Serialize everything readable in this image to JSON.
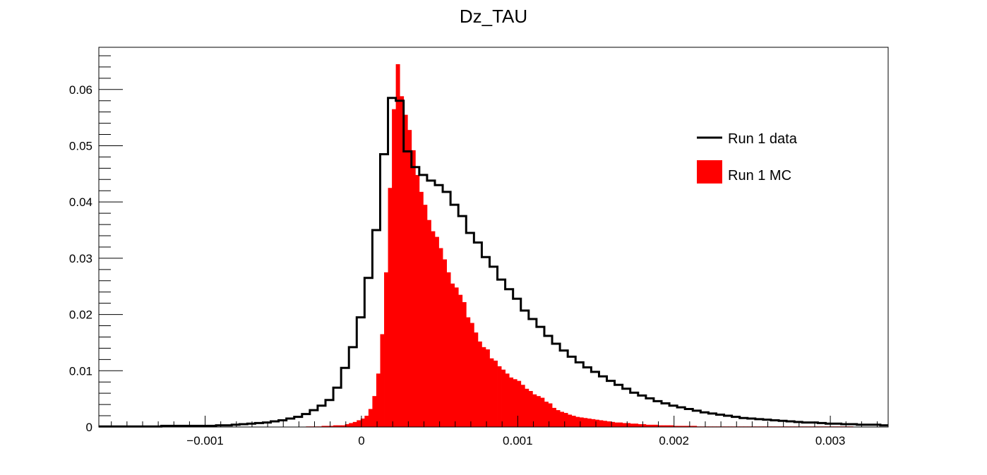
{
  "chart_data": {
    "type": "histogram",
    "title": "Dz_TAU",
    "xlabel": "",
    "ylabel": "",
    "xlim": [
      -0.00168,
      0.00337
    ],
    "ylim": [
      0,
      0.0675
    ],
    "x_ticks": [
      {
        "value": -0.001,
        "label": "−0.001"
      },
      {
        "value": 0,
        "label": "0"
      },
      {
        "value": 0.001,
        "label": "0.001"
      },
      {
        "value": 0.002,
        "label": "0.002"
      },
      {
        "value": 0.003,
        "label": "0.003"
      }
    ],
    "y_ticks": [
      {
        "value": 0,
        "label": "0"
      },
      {
        "value": 0.01,
        "label": "0.01"
      },
      {
        "value": 0.02,
        "label": "0.02"
      },
      {
        "value": 0.03,
        "label": "0.03"
      },
      {
        "value": 0.04,
        "label": "0.04"
      },
      {
        "value": 0.05,
        "label": "0.05"
      },
      {
        "value": 0.06,
        "label": "0.06"
      }
    ],
    "grid": false,
    "legend_position": "top-right",
    "series": [
      {
        "name": "Run 1 data",
        "style": "step",
        "color": "#000000",
        "bin_width": 5e-05,
        "x_start": -0.00168,
        "values": [
          0.0001,
          0.0001,
          0.0001,
          0.0001,
          0.0001,
          0.0001,
          0.0001,
          0.0001,
          0.0002,
          0.0002,
          0.0002,
          0.0002,
          0.0002,
          0.0002,
          0.0002,
          0.0003,
          0.0003,
          0.0004,
          0.0005,
          0.0006,
          0.0007,
          0.0008,
          0.001,
          0.0012,
          0.0015,
          0.0018,
          0.0023,
          0.003,
          0.0038,
          0.0048,
          0.007,
          0.0105,
          0.0142,
          0.0195,
          0.0265,
          0.035,
          0.0485,
          0.0585,
          0.058,
          0.049,
          0.0462,
          0.0448,
          0.0438,
          0.043,
          0.0418,
          0.0395,
          0.0375,
          0.0345,
          0.0328,
          0.0302,
          0.0285,
          0.0262,
          0.0245,
          0.0228,
          0.0207,
          0.0192,
          0.0178,
          0.0162,
          0.0148,
          0.0136,
          0.0125,
          0.0115,
          0.0106,
          0.0098,
          0.009,
          0.0082,
          0.0075,
          0.0068,
          0.0061,
          0.0056,
          0.0051,
          0.0046,
          0.0042,
          0.0038,
          0.0035,
          0.0032,
          0.0029,
          0.0026,
          0.0024,
          0.0022,
          0.002,
          0.0018,
          0.0016,
          0.0015,
          0.0014,
          0.0013,
          0.0012,
          0.0011,
          0.001,
          0.0009,
          0.0008,
          0.0008,
          0.0007,
          0.0006,
          0.0006,
          0.0005,
          0.0005,
          0.0004,
          0.0004,
          0.0004,
          0.0003
        ]
      },
      {
        "name": "Run 1 MC",
        "style": "filled",
        "color": "#ff0000",
        "bin_width": 2.5e-05,
        "x_start": -0.00168,
        "values": [
          0,
          0,
          0,
          0,
          0,
          0,
          0,
          0,
          0,
          0,
          0,
          0,
          0,
          0,
          0,
          0,
          0,
          0,
          0,
          0,
          0,
          0,
          0,
          0,
          0,
          0,
          0,
          0,
          0,
          0,
          0,
          0,
          0,
          0,
          0,
          0,
          0,
          0,
          0,
          0,
          0,
          0,
          0,
          0,
          0,
          0,
          0,
          0,
          0,
          0,
          0,
          0,
          0,
          0.0001,
          0.0001,
          0.0001,
          0.0001,
          0.0002,
          0.0002,
          0.0002,
          0.0003,
          0.0003,
          0.0003,
          0.0005,
          0.0007,
          0.0009,
          0.0012,
          0.0015,
          0.002,
          0.0032,
          0.0055,
          0.0095,
          0.0165,
          0.0275,
          0.0425,
          0.0565,
          0.0645,
          0.0588,
          0.0555,
          0.0528,
          0.0492,
          0.0448,
          0.0418,
          0.0395,
          0.0368,
          0.0348,
          0.0338,
          0.0318,
          0.0298,
          0.0275,
          0.0255,
          0.0248,
          0.0235,
          0.0222,
          0.0195,
          0.0185,
          0.0168,
          0.0152,
          0.0142,
          0.0138,
          0.0122,
          0.0118,
          0.0108,
          0.0102,
          0.0095,
          0.0088,
          0.0085,
          0.0082,
          0.0075,
          0.0068,
          0.0064,
          0.0058,
          0.0055,
          0.0052,
          0.0045,
          0.0042,
          0.0034,
          0.003,
          0.0027,
          0.0025,
          0.0022,
          0.002,
          0.0018,
          0.0017,
          0.0016,
          0.0015,
          0.0014,
          0.0013,
          0.0012,
          0.0011,
          0.001,
          0.0009,
          0.0008,
          0.0008,
          0.0007,
          0.0007,
          0.0006,
          0.0006,
          0.0005,
          0.0005,
          0.0004,
          0.0004,
          0.0004,
          0.0003,
          0.0003,
          0.0003,
          0.0003,
          0.0002,
          0.0002,
          0.0002,
          0.0002,
          0.0002,
          0.0002,
          0.0001,
          0.0001,
          0.0001,
          0.0001,
          0.0001,
          0.0001,
          0.0001,
          0.0001,
          0.0001,
          0.0001,
          0.0001,
          0.0001,
          0.0001,
          0.0001,
          0.0001,
          0.0001,
          0.0001,
          0.0001,
          0.0001,
          0.0001,
          0.0001,
          0.0001,
          0.0001,
          0.0001,
          0.0001,
          0.0001,
          0.0001,
          0.0001,
          0.0001,
          0.0001,
          0.0001,
          0.0001,
          0.0001,
          0.0001,
          0.0001,
          0.0001,
          0.0001,
          0.0001,
          0.0001,
          0.0001
        ]
      }
    ]
  }
}
